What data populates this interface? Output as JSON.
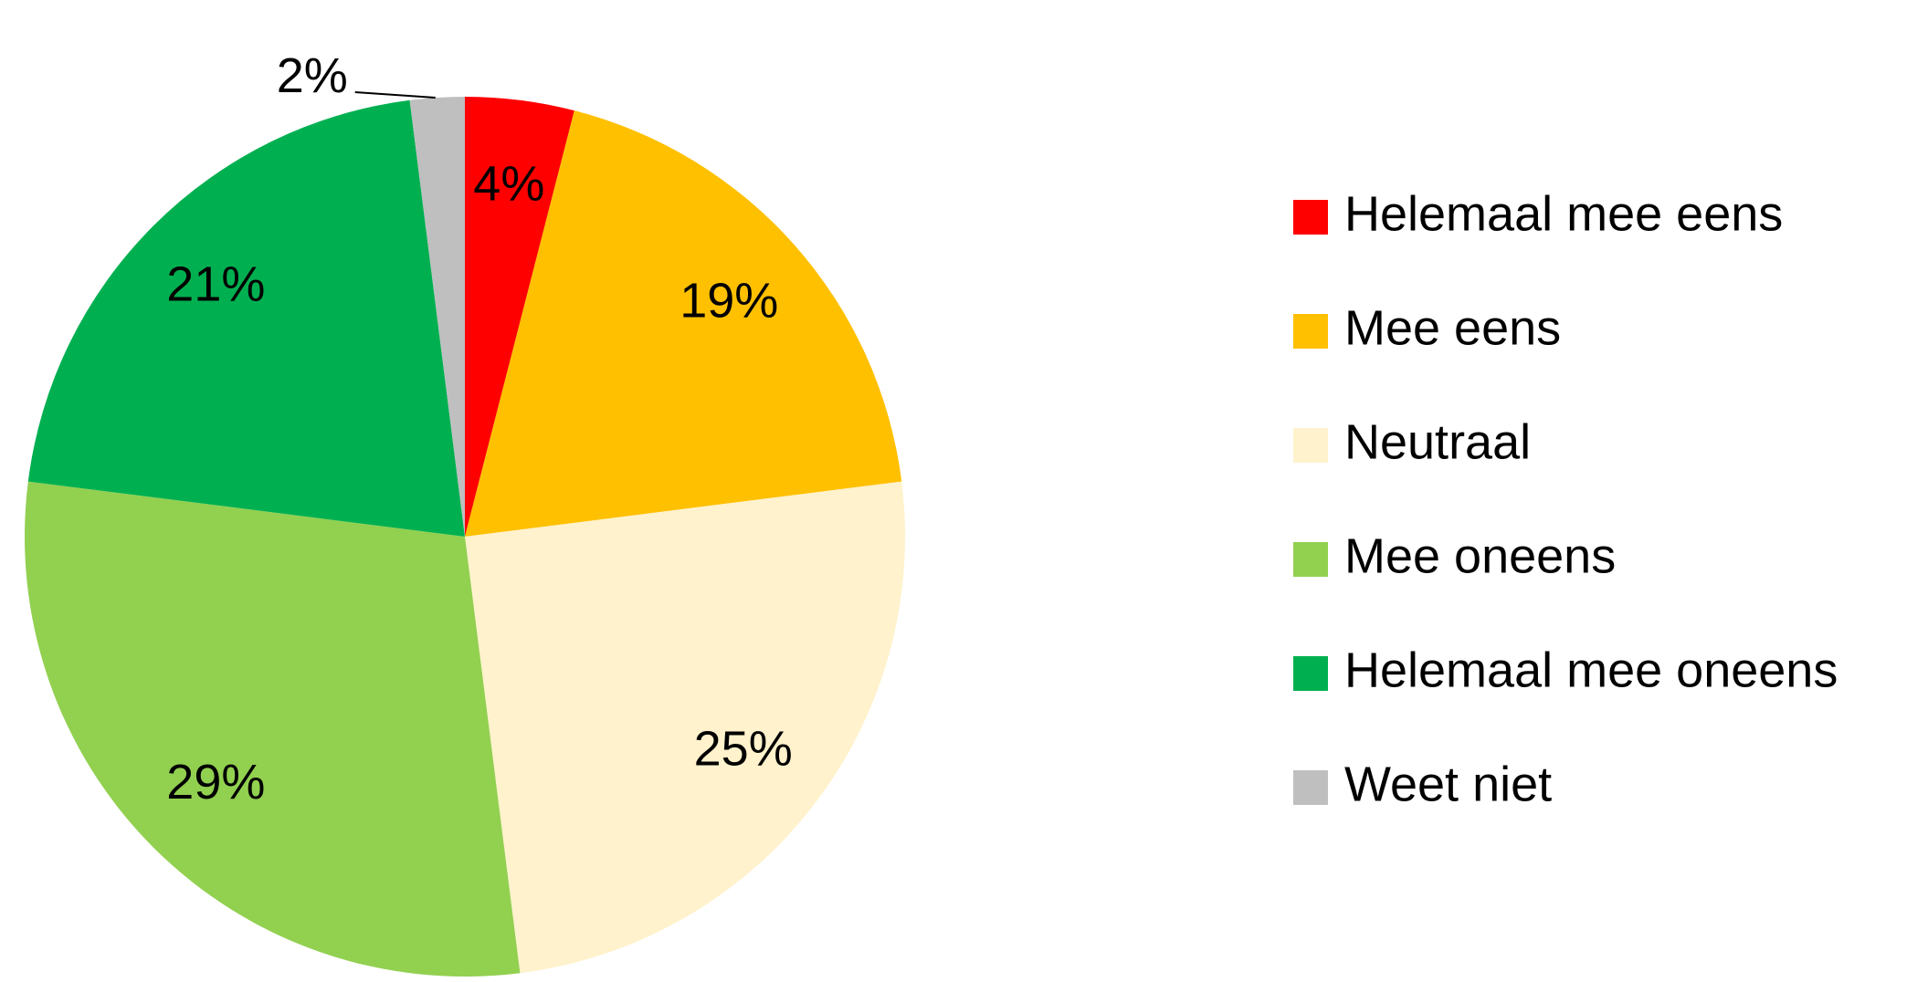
{
  "chart_data": {
    "type": "pie",
    "categories": [
      "Helemaal mee eens",
      "Mee eens",
      "Neutraal",
      "Mee oneens",
      "Helemaal mee oneens",
      "Weet niet"
    ],
    "values": [
      4,
      19,
      25,
      29,
      21,
      2
    ],
    "value_labels": [
      "4%",
      "19%",
      "25%",
      "29%",
      "21%",
      "2%"
    ],
    "colors": [
      "#ff0000",
      "#ffc000",
      "#fff2cc",
      "#92d050",
      "#00b050",
      "#bfbfbf"
    ],
    "legend": "right"
  }
}
